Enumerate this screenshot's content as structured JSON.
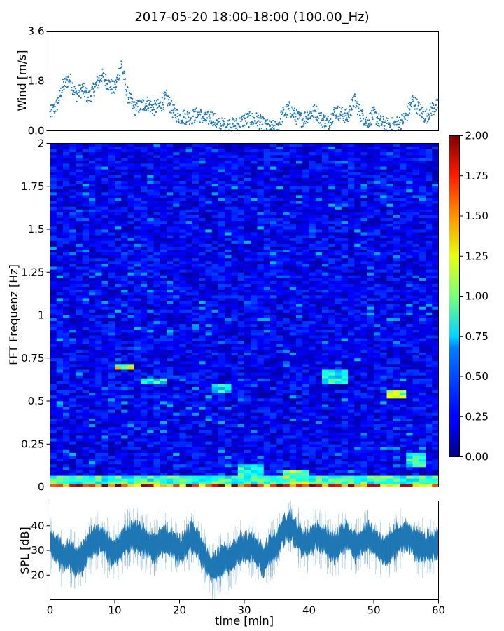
{
  "title": "2017-05-20 18:00-18:00 (100.00_Hz)",
  "chart_data": [
    {
      "type": "scatter",
      "panel": "wind",
      "ylabel": "Wind [m/s]",
      "xlim": [
        0,
        60
      ],
      "ylim": [
        0,
        3.6
      ],
      "yticks": [
        0.0,
        1.8,
        3.6
      ],
      "ytick_labels": [
        "0.0",
        "1.8",
        "3.6"
      ],
      "color": "#1f77b4",
      "grid": false,
      "x": [
        0,
        1,
        2,
        3,
        4,
        5,
        6,
        7,
        8,
        9,
        10,
        11,
        12,
        13,
        14,
        15,
        16,
        17,
        18,
        19,
        20,
        21,
        22,
        23,
        24,
        25,
        26,
        27,
        28,
        29,
        30,
        31,
        32,
        33,
        34,
        35,
        36,
        37,
        38,
        39,
        40,
        41,
        42,
        43,
        44,
        45,
        46,
        47,
        48,
        49,
        50,
        51,
        52,
        53,
        54,
        55,
        56,
        57,
        58,
        59,
        60
      ],
      "y": [
        0.6,
        0.9,
        1.6,
        1.9,
        1.3,
        1.5,
        1.2,
        1.6,
        2.0,
        1.7,
        1.5,
        2.4,
        1.3,
        0.8,
        0.9,
        1.0,
        0.8,
        0.9,
        1.2,
        0.7,
        0.5,
        0.5,
        0.5,
        0.6,
        0.4,
        0.5,
        0.2,
        0.2,
        0.2,
        0.2,
        0.4,
        0.4,
        0.4,
        0.2,
        0.1,
        0.1,
        0.6,
        0.8,
        0.5,
        0.4,
        0.6,
        0.7,
        0.4,
        0.3,
        0.7,
        0.6,
        0.5,
        1.1,
        0.6,
        0.3,
        0.6,
        0.3,
        0.2,
        0.2,
        0.3,
        0.5,
        1.1,
        0.8,
        0.5,
        0.8,
        0.9
      ]
    },
    {
      "type": "heatmap",
      "panel": "spectrogram",
      "ylabel": "FFT Frequenz [Hz]",
      "xlim": [
        0,
        60
      ],
      "ylim": [
        0,
        2
      ],
      "yticks": [
        0,
        0.25,
        0.5,
        0.75,
        1,
        1.25,
        1.5,
        1.75,
        2
      ],
      "ytick_labels": [
        "0",
        "0.25",
        "0.5",
        "0.75",
        "1",
        "1.25",
        "1.5",
        "1.75",
        "2"
      ],
      "colormap": "jet",
      "color_range": [
        0.0,
        2.0
      ],
      "colorbar_ticks": [
        "0.00",
        "0.25",
        "0.50",
        "0.75",
        "1.00",
        "1.25",
        "1.50",
        "1.75",
        "2.00"
      ],
      "background_level": 0.22,
      "hot_spots": [
        {
          "t": [
            0,
            60
          ],
          "f": [
            0,
            0.02
          ],
          "value": 1.7
        },
        {
          "t": [
            0,
            60
          ],
          "f": [
            0.02,
            0.06
          ],
          "value": 0.9
        },
        {
          "t": [
            10,
            13
          ],
          "f": [
            0.68,
            0.72
          ],
          "value": 1.2
        },
        {
          "t": [
            14,
            18
          ],
          "f": [
            0.6,
            0.64
          ],
          "value": 0.8
        },
        {
          "t": [
            25,
            28
          ],
          "f": [
            0.55,
            0.6
          ],
          "value": 0.8
        },
        {
          "t": [
            29,
            33
          ],
          "f": [
            0.04,
            0.14
          ],
          "value": 0.9
        },
        {
          "t": [
            36,
            40
          ],
          "f": [
            0.02,
            0.1
          ],
          "value": 1.1
        },
        {
          "t": [
            42,
            46
          ],
          "f": [
            0.6,
            0.68
          ],
          "value": 0.8
        },
        {
          "t": [
            52,
            55
          ],
          "f": [
            0.52,
            0.57
          ],
          "value": 1.1
        },
        {
          "t": [
            55,
            58
          ],
          "f": [
            0.12,
            0.2
          ],
          "value": 0.8
        }
      ]
    },
    {
      "type": "area",
      "panel": "spl",
      "ylabel": "SPL [dB]",
      "xlabel": "time [min]",
      "xlim": [
        0,
        60
      ],
      "ylim": [
        10,
        50
      ],
      "xticks": [
        0,
        10,
        20,
        30,
        40,
        50,
        60
      ],
      "xtick_labels": [
        "0",
        "10",
        "20",
        "30",
        "40",
        "50",
        "60"
      ],
      "yticks": [
        20,
        30,
        40
      ],
      "ytick_labels": [
        "20",
        "30",
        "40"
      ],
      "color": "#1f77b4",
      "x": [
        0,
        1,
        2,
        3,
        4,
        5,
        6,
        7,
        8,
        9,
        10,
        11,
        12,
        13,
        14,
        15,
        16,
        17,
        18,
        19,
        20,
        21,
        22,
        23,
        24,
        25,
        26,
        27,
        28,
        29,
        30,
        31,
        32,
        33,
        34,
        35,
        36,
        37,
        38,
        39,
        40,
        41,
        42,
        43,
        44,
        45,
        46,
        47,
        48,
        49,
        50,
        51,
        52,
        53,
        54,
        55,
        56,
        57,
        58,
        59,
        60
      ],
      "mean": [
        33,
        31,
        27,
        28,
        26,
        27,
        32,
        34,
        35,
        31,
        29,
        32,
        35,
        36,
        35,
        33,
        31,
        33,
        34,
        32,
        30,
        33,
        36,
        32,
        27,
        22,
        24,
        27,
        26,
        30,
        31,
        32,
        29,
        26,
        30,
        32,
        38,
        40,
        37,
        33,
        34,
        36,
        35,
        33,
        31,
        34,
        36,
        32,
        33,
        36,
        34,
        31,
        30,
        33,
        35,
        36,
        34,
        32,
        31,
        32,
        33
      ],
      "spread": [
        6,
        6,
        6,
        6,
        6,
        6,
        6,
        6,
        6,
        6,
        6,
        6,
        6,
        6,
        6,
        6,
        6,
        6,
        6,
        6,
        6,
        6,
        6,
        6,
        6,
        6,
        6,
        6,
        6,
        6,
        6,
        6,
        6,
        6,
        6,
        6,
        6,
        6,
        6,
        6,
        6,
        6,
        6,
        6,
        6,
        6,
        6,
        6,
        6,
        6,
        6,
        6,
        6,
        6,
        6,
        6,
        6,
        6,
        6,
        6,
        6
      ]
    }
  ]
}
